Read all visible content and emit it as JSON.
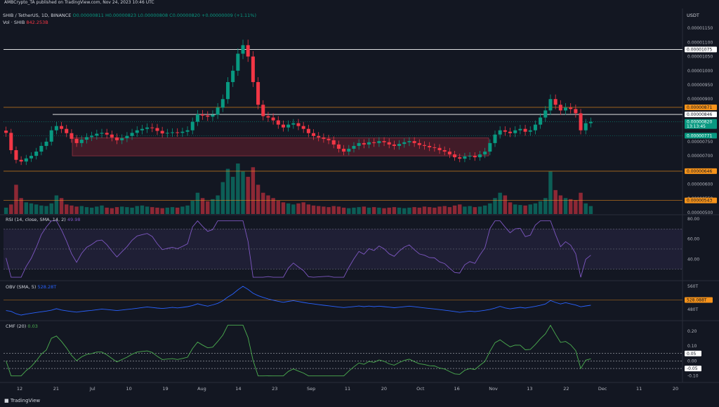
{
  "header": {
    "published": "AMBCrypto_TA published on TradingView.com, Nov 24, 2023 10:46 UTC"
  },
  "legend": {
    "symbol": "SHIB / TetherUS, 1D, BINANCE",
    "ohlc": "O0.00000811 H0.00000823 L0.00000808 C0.00000820 +0.00000009 (+1.11%)",
    "vol_label": "Vol · SHIB",
    "vol_value": "842.253B",
    "rsi_label": "RSI (14, close, SMA, 14, 2)",
    "rsi_value": "49.98",
    "obv_label": "OBV (SMA, 5)",
    "obv_value": "528.28T",
    "cmf_label": "CMF (20)",
    "cmf_value": "0.03"
  },
  "axis": {
    "currency": "USDT"
  },
  "footer": {
    "brand": "TradingView"
  },
  "colors": {
    "background": "#131722",
    "grid": "#1e222d",
    "up": "#089981",
    "down": "#f23645",
    "rsi": "#7e57c2",
    "obv": "#2962ff",
    "cmf": "#4caf50",
    "level_white": "#ffffff",
    "level_orange": "#f7931a",
    "zone": "#7a2230"
  },
  "chart_data": {
    "type": "candlestick",
    "x_ticks": [
      "12",
      "21",
      "Jul",
      "10",
      "19",
      "Aug",
      "14",
      "23",
      "Sep",
      "11",
      "20",
      "Oct",
      "16",
      "Nov",
      "13",
      "22",
      "Dec",
      "11",
      "20"
    ],
    "price_axis": {
      "ticks": [
        "0.00001150",
        "0.00001100",
        "0.00001050",
        "0.00001000",
        "0.00000950",
        "0.00000900",
        "0.00000850",
        "0.00000800",
        "0.00000750",
        "0.00000700",
        "0.00000650",
        "0.00000600",
        "0.00000550",
        "0.00000500"
      ],
      "ylim": [
        4.95e-06,
        1.175e-05
      ]
    },
    "levels": [
      {
        "label": "0.00001075",
        "value": 1.075e-05,
        "color": "white"
      },
      {
        "label": "0.00000871",
        "value": 8.71e-06,
        "color": "orange"
      },
      {
        "label": "0.00000846",
        "value": 8.46e-06,
        "color": "white"
      },
      {
        "label": "0.00000820",
        "value": 8.2e-06,
        "color": "green",
        "countdown": "13:13:45"
      },
      {
        "label": "0.00000771",
        "value": 7.71e-06,
        "color": "green"
      },
      {
        "label": "0.00000646",
        "value": 6.46e-06,
        "color": "orange"
      },
      {
        "label": "0.00000543",
        "value": 5.43e-06,
        "color": "orange"
      }
    ],
    "demand_zone": {
      "low": 7e-06,
      "high": 7.63e-06
    },
    "closes": [
      7.81e-06,
      7.2e-06,
      6.86e-06,
      6.8e-06,
      6.91e-06,
      7e-06,
      7.15e-06,
      7.35e-06,
      7.5e-06,
      7.9e-06,
      8.05e-06,
      7.95e-06,
      7.8e-06,
      7.6e-06,
      7.45e-06,
      7.57e-06,
      7.66e-06,
      7.71e-06,
      7.78e-06,
      7.81e-06,
      7.75e-06,
      7.65e-06,
      7.55e-06,
      7.62e-06,
      7.7e-06,
      7.81e-06,
      7.9e-06,
      7.95e-06,
      8e-06,
      7.98e-06,
      7.88e-06,
      7.79e-06,
      7.81e-06,
      7.83e-06,
      7.81e-06,
      7.85e-06,
      7.9e-06,
      8.2e-06,
      8.46e-06,
      8.42e-06,
      8.38e-06,
      8.45e-06,
      8.7e-06,
      9e-06,
      9.6e-06,
      1e-05,
      1.06e-05,
      1.09e-05,
      1.05e-05,
      9.6e-06,
      8.8e-06,
      8.4e-06,
      8.35e-06,
      8.25e-06,
      8.1e-06,
      8e-06,
      8.1e-06,
      8.15e-06,
      8.05e-06,
      7.95e-06,
      7.8e-06,
      7.7e-06,
      7.65e-06,
      7.6e-06,
      7.55e-06,
      7.4e-06,
      7.25e-06,
      7.15e-06,
      7.25e-06,
      7.35e-06,
      7.45e-06,
      7.4e-06,
      7.48e-06,
      7.45e-06,
      7.52e-06,
      7.48e-06,
      7.4e-06,
      7.35e-06,
      7.42e-06,
      7.48e-06,
      7.52e-06,
      7.45e-06,
      7.38e-06,
      7.35e-06,
      7.3e-06,
      7.28e-06,
      7.2e-06,
      7.15e-06,
      7.05e-06,
      6.95e-06,
      6.9e-06,
      6.98e-06,
      7e-06,
      6.95e-06,
      7.05e-06,
      7.15e-06,
      7.45e-06,
      7.75e-06,
      7.9e-06,
      7.85e-06,
      7.8e-06,
      7.9e-06,
      7.95e-06,
      7.85e-06,
      7.9e-06,
      8.1e-06,
      8.35e-06,
      8.6e-06,
      9e-06,
      8.8e-06,
      8.6e-06,
      8.7e-06,
      8.65e-06,
      8.5e-06,
      7.9e-06,
      8.15e-06,
      8.2e-06
    ],
    "volume": [
      12,
      18,
      55,
      30,
      22,
      20,
      18,
      16,
      15,
      20,
      35,
      30,
      18,
      16,
      14,
      15,
      13,
      12,
      14,
      16,
      12,
      11,
      13,
      14,
      13,
      12,
      15,
      16,
      14,
      13,
      12,
      11,
      12,
      13,
      12,
      14,
      16,
      25,
      40,
      30,
      24,
      28,
      35,
      60,
      85,
      70,
      95,
      80,
      70,
      88,
      55,
      40,
      35,
      30,
      25,
      22,
      20,
      18,
      20,
      22,
      18,
      16,
      15,
      14,
      13,
      15,
      14,
      12,
      11,
      12,
      13,
      14,
      12,
      13,
      12,
      11,
      12,
      13,
      12,
      11,
      12,
      13,
      12,
      14,
      13,
      12,
      14,
      15,
      13,
      16,
      18,
      14,
      15,
      13,
      14,
      16,
      20,
      30,
      40,
      35,
      22,
      18,
      17,
      16,
      18,
      20,
      24,
      30,
      80,
      45,
      35,
      30,
      28,
      26,
      40,
      20,
      15
    ],
    "rsi": {
      "ticks": [
        "80.00",
        "60.00",
        "40.00"
      ],
      "upper": 70,
      "lower": 30,
      "mid": 50,
      "ylim": [
        20,
        82
      ]
    },
    "obv": {
      "ticks": [
        "560T",
        "528.088T",
        "480T"
      ],
      "last": "528.088T",
      "ylim": [
        470,
        570
      ]
    },
    "cmf": {
      "ticks": [
        "0.20",
        "0.10",
        "0.05",
        "0.00",
        "-0.05",
        "-0.10"
      ],
      "upper": 0.05,
      "lower": -0.05,
      "ylim": [
        -0.12,
        0.26
      ]
    }
  }
}
